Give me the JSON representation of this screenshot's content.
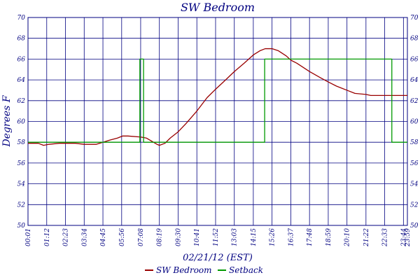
{
  "chart_data": {
    "type": "line",
    "title": "SW Bedroom",
    "xlabel": "02/21/12 (EST)",
    "ylabel": "Degrees F",
    "x_unit": "time of day (HH:MM)",
    "xlim": [
      "00:01",
      "23:59"
    ],
    "ylim": [
      50,
      70
    ],
    "grid": true,
    "legend": "bottom-center",
    "x_ticks": [
      "00:01",
      "01:12",
      "02:23",
      "03:34",
      "04:45",
      "05:56",
      "07:08",
      "08:19",
      "09:30",
      "10:41",
      "11:52",
      "13:03",
      "14:15",
      "15:26",
      "16:37",
      "17:48",
      "18:59",
      "20:10",
      "21:22",
      "22:33",
      "23:44",
      "23:59"
    ],
    "y_ticks": [
      50,
      52,
      54,
      56,
      58,
      60,
      62,
      64,
      66,
      68,
      70
    ],
    "series": [
      {
        "name": "SW Bedroom",
        "color": "#990000",
        "points": [
          [
            "00:01",
            57.9
          ],
          [
            "00:40",
            57.9
          ],
          [
            "01:00",
            57.7
          ],
          [
            "01:20",
            57.8
          ],
          [
            "02:00",
            57.9
          ],
          [
            "03:00",
            57.9
          ],
          [
            "03:34",
            57.8
          ],
          [
            "04:20",
            57.8
          ],
          [
            "04:45",
            58.0
          ],
          [
            "05:10",
            58.2
          ],
          [
            "05:40",
            58.4
          ],
          [
            "06:00",
            58.6
          ],
          [
            "06:20",
            58.6
          ],
          [
            "07:08",
            58.5
          ],
          [
            "07:30",
            58.4
          ],
          [
            "07:50",
            58.1
          ],
          [
            "08:10",
            57.8
          ],
          [
            "08:19",
            57.7
          ],
          [
            "08:40",
            57.9
          ],
          [
            "09:00",
            58.4
          ],
          [
            "09:30",
            59.0
          ],
          [
            "10:00",
            59.8
          ],
          [
            "10:41",
            61.0
          ],
          [
            "11:20",
            62.3
          ],
          [
            "11:52",
            63.1
          ],
          [
            "12:30",
            64.0
          ],
          [
            "13:03",
            64.8
          ],
          [
            "13:40",
            65.6
          ],
          [
            "14:15",
            66.4
          ],
          [
            "14:40",
            66.8
          ],
          [
            "15:00",
            67.0
          ],
          [
            "15:26",
            67.0
          ],
          [
            "15:50",
            66.8
          ],
          [
            "16:20",
            66.3
          ],
          [
            "16:37",
            65.9
          ],
          [
            "17:00",
            65.6
          ],
          [
            "17:48",
            64.8
          ],
          [
            "18:30",
            64.2
          ],
          [
            "18:59",
            63.8
          ],
          [
            "19:30",
            63.4
          ],
          [
            "20:10",
            63.0
          ],
          [
            "20:40",
            62.7
          ],
          [
            "21:22",
            62.6
          ],
          [
            "21:40",
            62.5
          ],
          [
            "22:33",
            62.5
          ],
          [
            "23:59",
            62.5
          ]
        ]
      },
      {
        "name": "Setback",
        "color": "#009900",
        "points": [
          [
            "00:01",
            58
          ],
          [
            "07:05",
            58
          ],
          [
            "07:05",
            66
          ],
          [
            "07:19",
            66
          ],
          [
            "07:19",
            58
          ],
          [
            "14:58",
            58
          ],
          [
            "14:58",
            66
          ],
          [
            "23:00",
            66
          ],
          [
            "23:00",
            58
          ],
          [
            "23:59",
            58
          ]
        ]
      }
    ]
  }
}
